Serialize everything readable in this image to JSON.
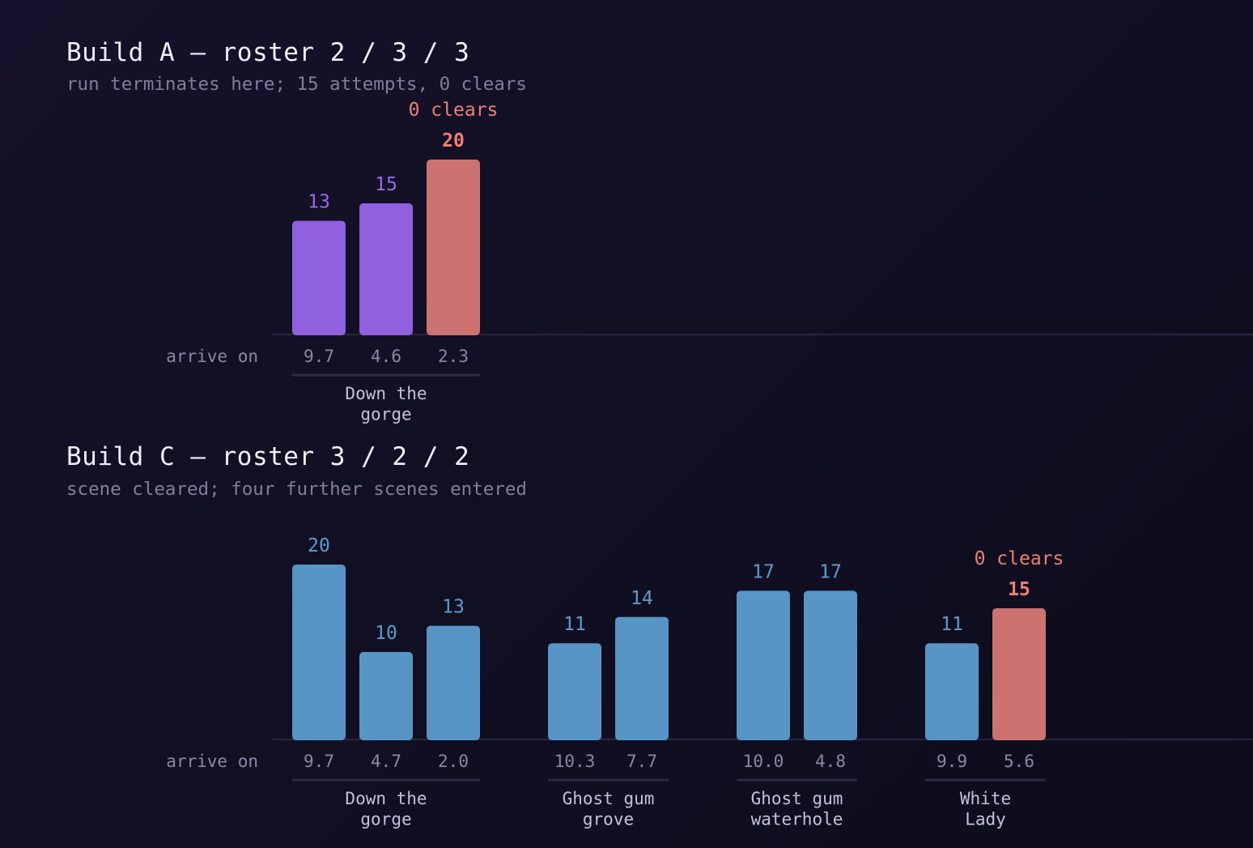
{
  "colors": {
    "purple": "#9061df",
    "purple_text": "#9a6ae6",
    "blue": "#5795c7",
    "blue_text": "#5a9cd0",
    "red": "#cc7270",
    "red_text": "#ef7f74",
    "axis": "#2a2540",
    "underline": "#2e2a44"
  },
  "chart_data": [
    {
      "type": "bar",
      "title": "Build A — roster 2 / 3 / 3",
      "subtitle": "run terminates here; 15 attempts, 0 clears",
      "row_label": "arrive on",
      "groups": [
        {
          "name": "Down the\ngorge",
          "bars": [
            {
              "label": "9.7",
              "value": 13,
              "highlight": false
            },
            {
              "label": "4.6",
              "value": 15,
              "highlight": false
            },
            {
              "label": "2.3",
              "value": 20,
              "highlight": true,
              "annotation": "0 clears"
            }
          ]
        }
      ]
    },
    {
      "type": "bar",
      "title": "Build C — roster 3 / 2 / 2",
      "subtitle": "scene cleared; four further scenes entered",
      "row_label": "arrive on",
      "groups": [
        {
          "name": "Down the\ngorge",
          "bars": [
            {
              "label": "9.7",
              "value": 20,
              "highlight": false
            },
            {
              "label": "4.7",
              "value": 10,
              "highlight": false
            },
            {
              "label": "2.0",
              "value": 13,
              "highlight": false
            }
          ]
        },
        {
          "name": "Ghost gum\ngrove",
          "bars": [
            {
              "label": "10.3",
              "value": 11,
              "highlight": false
            },
            {
              "label": "7.7",
              "value": 14,
              "highlight": false
            }
          ]
        },
        {
          "name": "Ghost gum\nwaterhole",
          "bars": [
            {
              "label": "10.0",
              "value": 17,
              "highlight": false
            },
            {
              "label": "4.8",
              "value": 17,
              "highlight": false
            }
          ]
        },
        {
          "name": "White\nLady",
          "bars": [
            {
              "label": "9.9",
              "value": 11,
              "highlight": false
            },
            {
              "label": "5.6",
              "value": 15,
              "highlight": true,
              "annotation": "0 clears"
            }
          ]
        }
      ]
    }
  ]
}
